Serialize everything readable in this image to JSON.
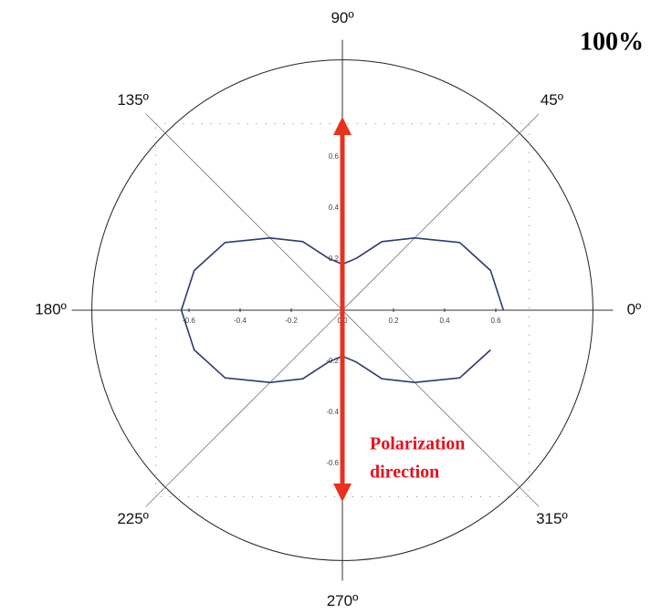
{
  "chart_data": {
    "type": "polar",
    "theta": [
      0,
      15,
      30,
      45,
      60,
      75,
      90,
      105,
      120,
      135,
      150,
      165,
      180,
      195,
      210,
      225,
      240,
      255,
      270,
      285,
      300,
      315,
      330,
      345
    ],
    "r": [
      0.63,
      0.6,
      0.53,
      0.4,
      0.31,
      0.21,
      0.18,
      0.21,
      0.31,
      0.4,
      0.53,
      0.6,
      0.63,
      0.6,
      0.53,
      0.4,
      0.31,
      0.21,
      0.18,
      0.21,
      0.31,
      0.4,
      0.53,
      0.6
    ],
    "color": "#2e3a6e",
    "rlim": [
      0,
      0.98
    ],
    "angle_ticks": [
      {
        "value": 0,
        "label": "0º"
      },
      {
        "value": 45,
        "label": "45º"
      },
      {
        "value": 90,
        "label": "90º"
      },
      {
        "value": 135,
        "label": "135º"
      },
      {
        "value": 180,
        "label": "180º"
      },
      {
        "value": 225,
        "label": "225º"
      },
      {
        "value": 270,
        "label": "270º"
      },
      {
        "value": 315,
        "label": "315º"
      }
    ],
    "xticks": [
      -0.6,
      -0.4,
      -0.2,
      {
        "value": 0,
        "label": "0.0"
      },
      0.2,
      0.4,
      0.6
    ],
    "yticks": [
      -0.6,
      -0.4,
      -0.2,
      0.2,
      0.4,
      0.6
    ],
    "frame_lim": 0.73,
    "annotations": {
      "corner": "100%",
      "arrow_label": [
        "Polarization",
        "direction"
      ]
    }
  }
}
